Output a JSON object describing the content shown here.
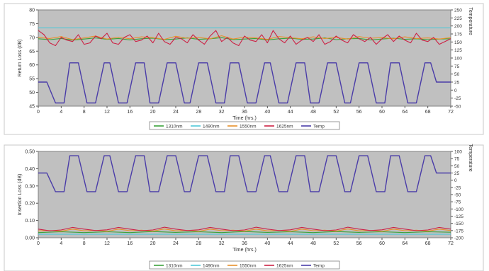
{
  "chart_data": [
    {
      "type": "line",
      "ylabel": "Return Loss (dB)",
      "y2label": "Temperature",
      "xlabel": "Time (hrs.)",
      "xlim": [
        0,
        72
      ],
      "ylim": [
        45,
        80
      ],
      "y2lim": [
        -50,
        250
      ],
      "xticks": [
        0,
        4,
        8,
        12,
        16,
        20,
        24,
        28,
        32,
        36,
        40,
        44,
        48,
        52,
        56,
        60,
        64,
        68,
        72
      ],
      "yticks": [
        45,
        50,
        55,
        60,
        65,
        70,
        75,
        80
      ],
      "y2ticks": [
        -50,
        -25,
        0,
        25,
        50,
        75,
        100,
        125,
        150,
        175,
        200,
        225,
        250
      ],
      "grid": false,
      "legend_position": "bottom",
      "series": [
        {
          "name": "1310nm",
          "axis": "left",
          "color": "#3aa23a",
          "x": [
            0,
            2,
            4,
            6,
            8,
            10,
            12,
            14,
            16,
            18,
            20,
            22,
            24,
            26,
            28,
            30,
            32,
            34,
            36,
            38,
            40,
            42,
            44,
            46,
            48,
            50,
            52,
            54,
            56,
            58,
            60,
            62,
            64,
            66,
            68,
            70,
            72
          ],
          "y": [
            69.5,
            69.2,
            69.6,
            69.0,
            69.4,
            69.8,
            69.3,
            69.6,
            69.1,
            69.5,
            69.7,
            69.2,
            69.4,
            69.8,
            69.3,
            69.5,
            69.9,
            69.2,
            69.4,
            69.6,
            69.1,
            69.5,
            69.7,
            69.3,
            69.4,
            69.8,
            69.2,
            69.5,
            69.6,
            69.1,
            69.4,
            69.7,
            69.3,
            69.5,
            69.2,
            69.4,
            69.5
          ]
        },
        {
          "name": "1490nm",
          "axis": "left",
          "color": "#4fc8d8",
          "x": [
            0,
            72
          ],
          "y": [
            73.5,
            73.5
          ]
        },
        {
          "name": "1550nm",
          "axis": "left",
          "color": "#e8902a",
          "x": [
            0,
            2,
            4,
            6,
            8,
            10,
            12,
            14,
            16,
            18,
            20,
            22,
            24,
            26,
            28,
            30,
            32,
            34,
            36,
            38,
            40,
            42,
            44,
            46,
            48,
            50,
            52,
            54,
            56,
            58,
            60,
            62,
            64,
            66,
            68,
            70,
            72
          ],
          "y": [
            70.0,
            69.6,
            70.3,
            69.2,
            69.8,
            70.5,
            69.4,
            70.1,
            69.5,
            70.2,
            69.9,
            69.3,
            70.4,
            69.7,
            70.0,
            69.5,
            70.6,
            69.4,
            70.1,
            69.8,
            69.3,
            70.3,
            69.9,
            69.5,
            70.2,
            69.6,
            70.0,
            69.4,
            70.3,
            69.7,
            69.9,
            69.5,
            70.2,
            69.6,
            69.8,
            69.4,
            69.9
          ]
        },
        {
          "name": "1625nm",
          "axis": "left",
          "color": "#cc2244",
          "x": [
            0,
            1,
            2,
            3,
            4,
            5,
            6,
            7,
            8,
            9,
            10,
            11,
            12,
            13,
            14,
            15,
            16,
            17,
            18,
            19,
            20,
            21,
            22,
            23,
            24,
            25,
            26,
            27,
            28,
            29,
            30,
            31,
            32,
            33,
            34,
            35,
            36,
            37,
            38,
            39,
            40,
            41,
            42,
            43,
            44,
            45,
            46,
            47,
            48,
            49,
            50,
            51,
            52,
            53,
            54,
            55,
            56,
            57,
            58,
            59,
            60,
            61,
            62,
            63,
            64,
            65,
            66,
            67,
            68,
            69,
            70,
            71,
            72
          ],
          "y": [
            72.5,
            71.0,
            68.0,
            67.0,
            70.0,
            69.0,
            68.5,
            71.0,
            67.5,
            68.0,
            70.5,
            69.5,
            71.5,
            68.0,
            67.5,
            70.0,
            71.0,
            68.5,
            69.0,
            70.5,
            68.0,
            71.5,
            68.5,
            67.5,
            70.0,
            69.5,
            68.0,
            71.0,
            69.0,
            67.5,
            70.5,
            72.5,
            68.5,
            70.0,
            68.0,
            67.0,
            70.5,
            69.0,
            68.5,
            71.0,
            68.0,
            72.5,
            69.5,
            68.0,
            70.5,
            67.5,
            69.0,
            70.0,
            68.5,
            71.0,
            67.5,
            68.5,
            70.5,
            69.0,
            68.0,
            71.0,
            69.5,
            68.5,
            70.0,
            67.5,
            69.5,
            71.0,
            68.5,
            70.5,
            69.0,
            68.0,
            71.5,
            69.0,
            68.5,
            70.0,
            67.5,
            68.5,
            69.5
          ]
        },
        {
          "name": "Temp",
          "axis": "right",
          "color": "#4a3ca8",
          "x": [
            0,
            1.5,
            3.0,
            4.5,
            5.5,
            7.0,
            8.5,
            10.0,
            11.5,
            12.5,
            14.0,
            15.5,
            17.0,
            18.5,
            19.5,
            21.0,
            22.5,
            24.0,
            25.5,
            26.5,
            28.0,
            29.5,
            31.0,
            32.5,
            33.5,
            35.0,
            36.5,
            38.0,
            39.5,
            40.5,
            42.0,
            43.5,
            45.0,
            46.5,
            47.5,
            49.0,
            50.5,
            52.0,
            53.5,
            54.5,
            56.0,
            57.5,
            59.0,
            60.5,
            61.5,
            63.0,
            64.5,
            66.0,
            67.5,
            68.5,
            69.5,
            72.0
          ],
          "y": [
            25,
            25,
            -40,
            -40,
            85,
            85,
            -40,
            -40,
            85,
            85,
            -40,
            -40,
            85,
            85,
            -40,
            -40,
            85,
            85,
            -40,
            -40,
            85,
            85,
            -40,
            -40,
            85,
            85,
            -40,
            -40,
            85,
            85,
            -40,
            -40,
            85,
            85,
            -40,
            -40,
            85,
            85,
            -40,
            -40,
            85,
            85,
            -40,
            -40,
            85,
            85,
            -40,
            -40,
            85,
            85,
            25,
            25
          ]
        }
      ]
    },
    {
      "type": "line",
      "ylabel": "Insertion Loss (dB)",
      "y2label": "Temperature",
      "xlabel": "Time (hrs.)",
      "xlim": [
        0,
        72
      ],
      "ylim": [
        0.0,
        0.5
      ],
      "y2lim": [
        -200,
        100
      ],
      "xticks": [
        0,
        4,
        8,
        12,
        16,
        20,
        24,
        28,
        32,
        36,
        40,
        44,
        48,
        52,
        56,
        60,
        64,
        68,
        72
      ],
      "yticks": [
        "0.00",
        "0.10",
        "0.20",
        "0.30",
        "0.40",
        "0.50"
      ],
      "y2ticks": [
        -200,
        -175,
        -150,
        -125,
        -100,
        -75,
        -50,
        -25,
        0,
        25,
        50,
        75,
        100
      ],
      "grid": false,
      "legend_position": "bottom",
      "series": [
        {
          "name": "1310nm",
          "axis": "left",
          "color": "#3aa23a",
          "x": [
            0,
            4,
            8,
            12,
            16,
            20,
            24,
            28,
            32,
            36,
            40,
            44,
            48,
            52,
            56,
            60,
            64,
            68,
            72
          ],
          "y": [
            0.03,
            0.035,
            0.03,
            0.035,
            0.03,
            0.036,
            0.031,
            0.035,
            0.03,
            0.036,
            0.031,
            0.035,
            0.03,
            0.036,
            0.031,
            0.035,
            0.03,
            0.035,
            0.032
          ]
        },
        {
          "name": "1490nm",
          "axis": "left",
          "color": "#4fc8d8",
          "x": [
            0,
            72
          ],
          "y": [
            0.02,
            0.02
          ]
        },
        {
          "name": "1550nm",
          "axis": "left",
          "color": "#e8902a",
          "x": [
            0,
            2,
            4,
            6,
            8,
            10,
            12,
            14,
            16,
            18,
            20,
            22,
            24,
            26,
            28,
            30,
            32,
            34,
            36,
            38,
            40,
            42,
            44,
            46,
            48,
            50,
            52,
            54,
            56,
            58,
            60,
            62,
            64,
            66,
            68,
            70,
            72
          ],
          "y": [
            0.04,
            0.042,
            0.038,
            0.05,
            0.04,
            0.043,
            0.037,
            0.05,
            0.041,
            0.044,
            0.038,
            0.051,
            0.04,
            0.043,
            0.037,
            0.05,
            0.041,
            0.044,
            0.038,
            0.05,
            0.04,
            0.043,
            0.037,
            0.05,
            0.041,
            0.044,
            0.038,
            0.051,
            0.04,
            0.043,
            0.037,
            0.05,
            0.041,
            0.044,
            0.038,
            0.05,
            0.042
          ]
        },
        {
          "name": "1625nm",
          "axis": "left",
          "color": "#cc2244",
          "x": [
            0,
            2,
            4,
            6,
            8,
            10,
            12,
            14,
            16,
            18,
            20,
            22,
            24,
            26,
            28,
            30,
            32,
            34,
            36,
            38,
            40,
            42,
            44,
            46,
            48,
            50,
            52,
            54,
            56,
            58,
            60,
            62,
            64,
            66,
            68,
            70,
            72
          ],
          "y": [
            0.05,
            0.04,
            0.045,
            0.06,
            0.05,
            0.042,
            0.046,
            0.06,
            0.05,
            0.041,
            0.045,
            0.061,
            0.05,
            0.042,
            0.046,
            0.06,
            0.05,
            0.041,
            0.045,
            0.061,
            0.05,
            0.042,
            0.046,
            0.06,
            0.05,
            0.041,
            0.045,
            0.061,
            0.05,
            0.042,
            0.046,
            0.06,
            0.05,
            0.041,
            0.045,
            0.06,
            0.05
          ]
        },
        {
          "name": "Temp",
          "axis": "right",
          "color": "#4a3ca8",
          "x": [
            0,
            1.5,
            3.0,
            4.5,
            5.5,
            7.0,
            8.5,
            10.0,
            11.5,
            12.5,
            14.0,
            15.5,
            17.0,
            18.5,
            19.5,
            21.0,
            22.5,
            24.0,
            25.5,
            26.5,
            28.0,
            29.5,
            31.0,
            32.5,
            33.5,
            35.0,
            36.5,
            38.0,
            39.5,
            40.5,
            42.0,
            43.5,
            45.0,
            46.5,
            47.5,
            49.0,
            50.5,
            52.0,
            53.5,
            54.5,
            56.0,
            57.5,
            59.0,
            60.5,
            61.5,
            63.0,
            64.5,
            66.0,
            67.5,
            68.5,
            69.5,
            72.0
          ],
          "y": [
            25,
            25,
            -40,
            -40,
            85,
            85,
            -40,
            -40,
            85,
            85,
            -40,
            -40,
            85,
            85,
            -40,
            -40,
            85,
            85,
            -40,
            -40,
            85,
            85,
            -40,
            -40,
            85,
            85,
            -40,
            -40,
            85,
            85,
            -40,
            -40,
            85,
            85,
            -40,
            -40,
            85,
            85,
            -40,
            -40,
            85,
            85,
            -40,
            -40,
            85,
            85,
            -40,
            -40,
            85,
            85,
            25,
            25
          ]
        }
      ]
    }
  ]
}
